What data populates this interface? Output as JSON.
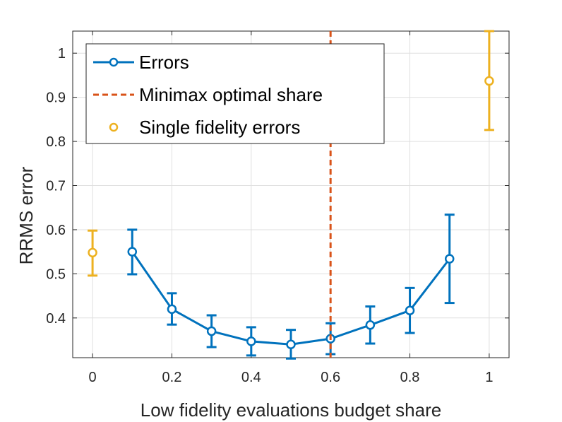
{
  "chart_data": {
    "type": "line",
    "xlabel": "Low fidelity evaluations budget share",
    "ylabel": "RRMS error",
    "xlim": [
      -0.05,
      1.05
    ],
    "ylim": [
      0.31,
      1.05
    ],
    "xticks": [
      0,
      0.2,
      0.4,
      0.6,
      0.8,
      1
    ],
    "xtick_labels": [
      "0",
      "0.2",
      "0.4",
      "0.6",
      "0.8",
      "1"
    ],
    "yticks": [
      0.4,
      0.5,
      0.6,
      0.7,
      0.8,
      0.9,
      1.0
    ],
    "ytick_labels": [
      "0.4",
      "0.5",
      "0.6",
      "0.7",
      "0.8",
      "0.9",
      "1"
    ],
    "grid": true,
    "legend_position": "top-left",
    "colors": {
      "errors": "#0072bd",
      "minimax": "#d95319",
      "single": "#edb120"
    },
    "series": [
      {
        "name": "Errors",
        "style": "line-with-markers-and-errorbars",
        "x": [
          0.1,
          0.2,
          0.3,
          0.4,
          0.5,
          0.6,
          0.7,
          0.8,
          0.9
        ],
        "y": [
          0.55,
          0.42,
          0.37,
          0.347,
          0.34,
          0.353,
          0.384,
          0.417,
          0.534
        ],
        "err_low": [
          0.499,
          0.385,
          0.334,
          0.315,
          0.308,
          0.318,
          0.342,
          0.366,
          0.434
        ],
        "err_high": [
          0.6,
          0.456,
          0.406,
          0.379,
          0.373,
          0.388,
          0.426,
          0.468,
          0.634
        ]
      },
      {
        "name": "Minimax optimal share",
        "style": "dashed-vertical-line",
        "x": 0.6
      },
      {
        "name": "Single fidelity errors",
        "style": "markers-with-errorbars",
        "x": [
          0,
          1
        ],
        "y": [
          0.548,
          0.937
        ],
        "err_low": [
          0.496,
          0.826
        ],
        "err_high": [
          0.598,
          1.05
        ]
      }
    ]
  }
}
